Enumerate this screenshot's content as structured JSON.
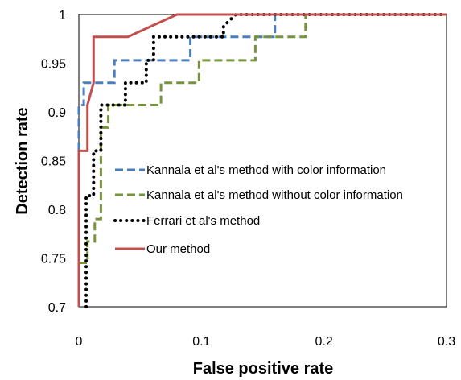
{
  "chart_data": {
    "type": "line",
    "title": "",
    "xlabel": "False positive rate",
    "ylabel": "Detection rate",
    "xlim": [
      0,
      0.3
    ],
    "ylim": [
      0.7,
      1
    ],
    "x_ticks": [
      "0",
      "0.1",
      "0.2",
      "0.3"
    ],
    "y_ticks": [
      "0.7",
      "0.75",
      "0.8",
      "0.85",
      "0.9",
      "0.95",
      "1"
    ],
    "grid": false,
    "legend_position": "center-left",
    "series": [
      {
        "name": "Kannala et al's method with color information",
        "color": "#4a7ebb",
        "style": "dashed",
        "points": [
          [
            0,
            0.86
          ],
          [
            0,
            0.907
          ],
          [
            0.004,
            0.907
          ],
          [
            0.004,
            0.93
          ],
          [
            0.029,
            0.93
          ],
          [
            0.029,
            0.953
          ],
          [
            0.091,
            0.953
          ],
          [
            0.091,
            0.977
          ],
          [
            0.16,
            0.977
          ],
          [
            0.16,
            1
          ],
          [
            0.3,
            1
          ]
        ]
      },
      {
        "name": "Kannala et al's method without color information",
        "color": "#77933c",
        "style": "dashed",
        "points": [
          [
            0,
            0.745
          ],
          [
            0.007,
            0.745
          ],
          [
            0.007,
            0.767
          ],
          [
            0.013,
            0.767
          ],
          [
            0.013,
            0.79
          ],
          [
            0.018,
            0.79
          ],
          [
            0.018,
            0.884
          ],
          [
            0.024,
            0.884
          ],
          [
            0.024,
            0.907
          ],
          [
            0.067,
            0.907
          ],
          [
            0.067,
            0.93
          ],
          [
            0.098,
            0.93
          ],
          [
            0.098,
            0.953
          ],
          [
            0.144,
            0.953
          ],
          [
            0.144,
            0.977
          ],
          [
            0.185,
            0.977
          ],
          [
            0.185,
            1
          ],
          [
            0.3,
            1
          ]
        ]
      },
      {
        "name": "Ferrari et al's method",
        "color": "#000000",
        "style": "dotted",
        "points": [
          [
            0.006,
            0.7
          ],
          [
            0.006,
            0.814
          ],
          [
            0.012,
            0.814
          ],
          [
            0.012,
            0.86
          ],
          [
            0.018,
            0.86
          ],
          [
            0.018,
            0.907
          ],
          [
            0.038,
            0.907
          ],
          [
            0.038,
            0.93
          ],
          [
            0.055,
            0.93
          ],
          [
            0.055,
            0.953
          ],
          [
            0.061,
            0.953
          ],
          [
            0.061,
            0.977
          ],
          [
            0.118,
            0.977
          ],
          [
            0.118,
            0.988
          ],
          [
            0.128,
            1
          ],
          [
            0.3,
            1
          ]
        ]
      },
      {
        "name": "Our method",
        "color": "#c0504d",
        "style": "solid",
        "points": [
          [
            0,
            0.7
          ],
          [
            0,
            0.86
          ],
          [
            0.007,
            0.86
          ],
          [
            0.007,
            0.907
          ],
          [
            0.012,
            0.93
          ],
          [
            0.012,
            0.977
          ],
          [
            0.04,
            0.977
          ],
          [
            0.08,
            1
          ],
          [
            0.3,
            1
          ]
        ]
      }
    ]
  }
}
